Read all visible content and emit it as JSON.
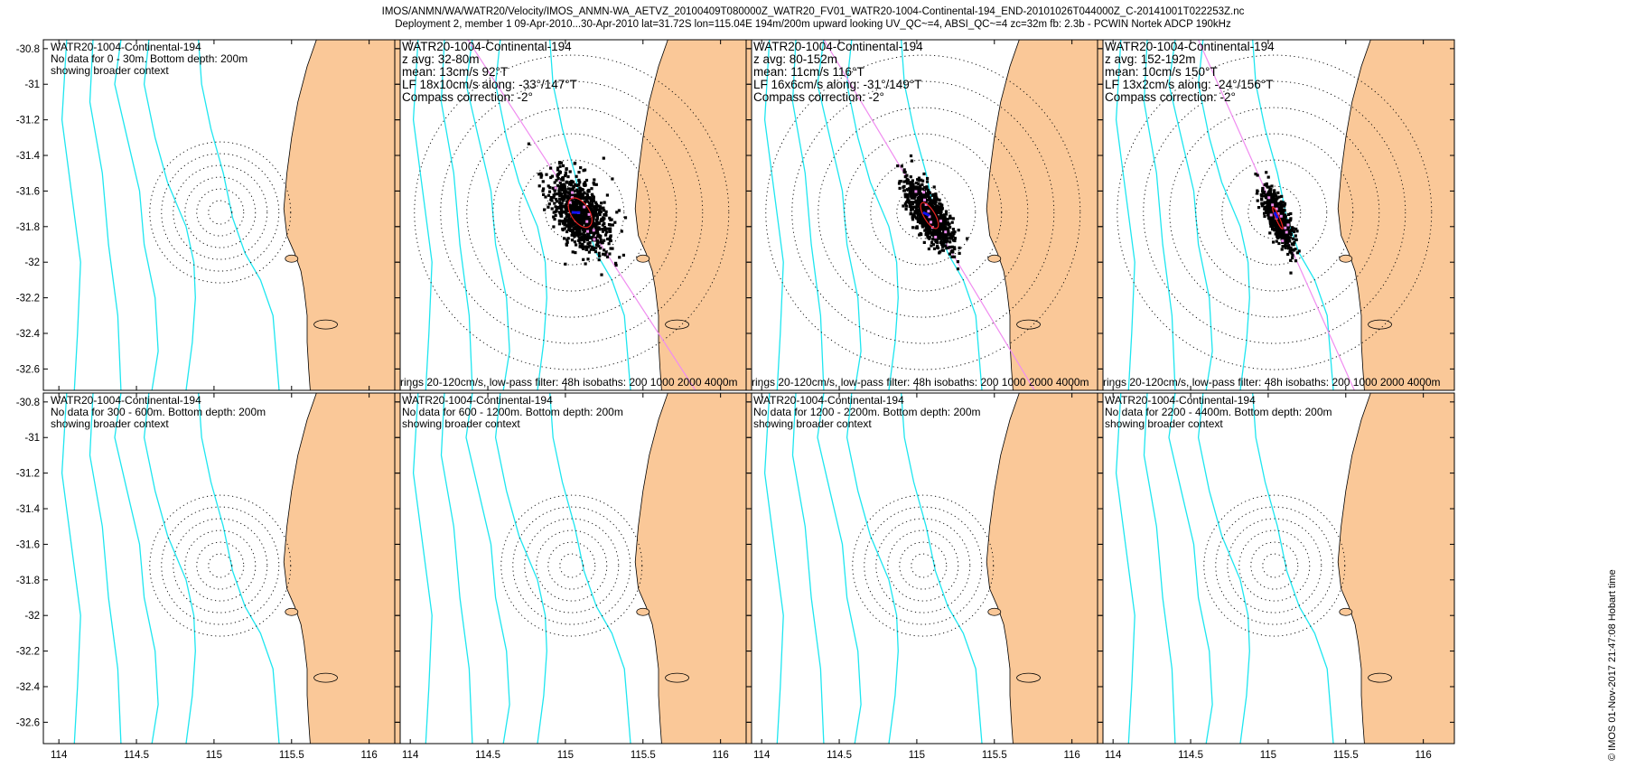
{
  "header": {
    "line1": "IMOS/ANMN/WA/WATR20/Velocity/IMOS_ANMN-WA_AETVZ_20100409T080000Z_WATR20_FV01_WATR20-1004-Continental-194_END-20101026T044000Z_C-20141001T022253Z.nc",
    "line2": "Deployment 2, member 1 09-Apr-2010...30-Apr-2010 lat=31.72S lon=115.04E 194m/200m upward looking UV_QC~=4, ABSI_QC~=4 zc=32m fb: 2.3b - PCWIN Nortek    ADCP 190kHz"
  },
  "footer": {
    "text": "© IMOS 01-Nov-2017 21:47:08 Hobart time"
  },
  "colors": {
    "land": "#FAC898",
    "isobath": "#1EE6F0",
    "axis": "#F08CF0",
    "mean": "#1010F0",
    "ellipse": "#E82020",
    "points": "#000000"
  },
  "chart_data": {
    "type": "scatter",
    "xlim": [
      113.9,
      116.2
    ],
    "ylim": [
      -32.72,
      -30.75
    ],
    "xticks": [
      114,
      114.5,
      115,
      115.5,
      116
    ],
    "xtick_labels": [
      "114",
      "114.5",
      "115",
      "115.5",
      "116"
    ],
    "yticks": [
      -30.8,
      -31,
      -31.2,
      -31.4,
      -31.6,
      -31.8,
      -32,
      -32.2,
      -32.4,
      -32.6
    ],
    "ytick_labels": [
      "-30.8",
      "-31",
      "-31.2",
      "-31.4",
      "-31.6",
      "-31.8",
      "-32",
      "-32.2",
      "-32.4",
      "-32.6"
    ],
    "mooring": {
      "lat": -31.72,
      "lon": 115.04
    },
    "ring_speeds_cm_s": [
      20,
      40,
      60,
      80,
      100,
      120
    ],
    "panels": [
      {
        "title": "WATR20-1004-Continental-194",
        "has_data": false,
        "lines": [
          "No data for 0 - 30m. Bottom depth: 200m",
          "showing broader context"
        ]
      },
      {
        "title": "WATR20-1004-Continental-194",
        "has_data": true,
        "lines": [
          "z avg: 32-80m",
          "mean: 13cm/s 92°T",
          "LF 18x10cm/s along: -33°/147°T",
          "Compass correction: -2°"
        ],
        "footer": "rings 20-120cm/s, low-pass filter: 48h isobaths: 200 1000 2000 4000m",
        "mean_speed": 13,
        "mean_dir": 92,
        "major": 18,
        "minor": 10,
        "along_dir": 147,
        "npoints": 900
      },
      {
        "title": "WATR20-1004-Continental-194",
        "has_data": true,
        "lines": [
          "z avg: 80-152m",
          "mean: 11cm/s 116°T",
          "LF 16x6cm/s along: -31°/149°T",
          "Compass correction: -2°"
        ],
        "footer": "rings 20-120cm/s, low-pass filter: 48h isobaths: 200 1000 2000 4000m",
        "mean_speed": 11,
        "mean_dir": 116,
        "major": 16,
        "minor": 6,
        "along_dir": 149,
        "npoints": 900
      },
      {
        "title": "WATR20-1004-Continental-194",
        "has_data": true,
        "lines": [
          "z avg: 152-192m",
          "mean: 10cm/s 150°T",
          "LF 13x2cm/s along: -24°/156°T",
          "Compass correction: -2°"
        ],
        "footer": "rings 20-120cm/s, low-pass filter: 48h isobaths: 200 1000 2000 4000m",
        "mean_speed": 10,
        "mean_dir": 150,
        "major": 13,
        "minor": 2,
        "along_dir": 156,
        "npoints": 700
      },
      {
        "title": "WATR20-1004-Continental-194",
        "has_data": false,
        "lines": [
          "No data for 300 - 600m. Bottom depth: 200m",
          "showing broader context"
        ]
      },
      {
        "title": "WATR20-1004-Continental-194",
        "has_data": false,
        "lines": [
          "No data for 600 - 1200m. Bottom depth: 200m",
          "showing broader context"
        ]
      },
      {
        "title": "WATR20-1004-Continental-194",
        "has_data": false,
        "lines": [
          "No data for 1200 - 2200m. Bottom depth: 200m",
          "showing broader context"
        ]
      },
      {
        "title": "WATR20-1004-Continental-194",
        "has_data": false,
        "lines": [
          "No data for 2200 - 4400m. Bottom depth: 200m",
          "showing broader context"
        ]
      }
    ]
  }
}
